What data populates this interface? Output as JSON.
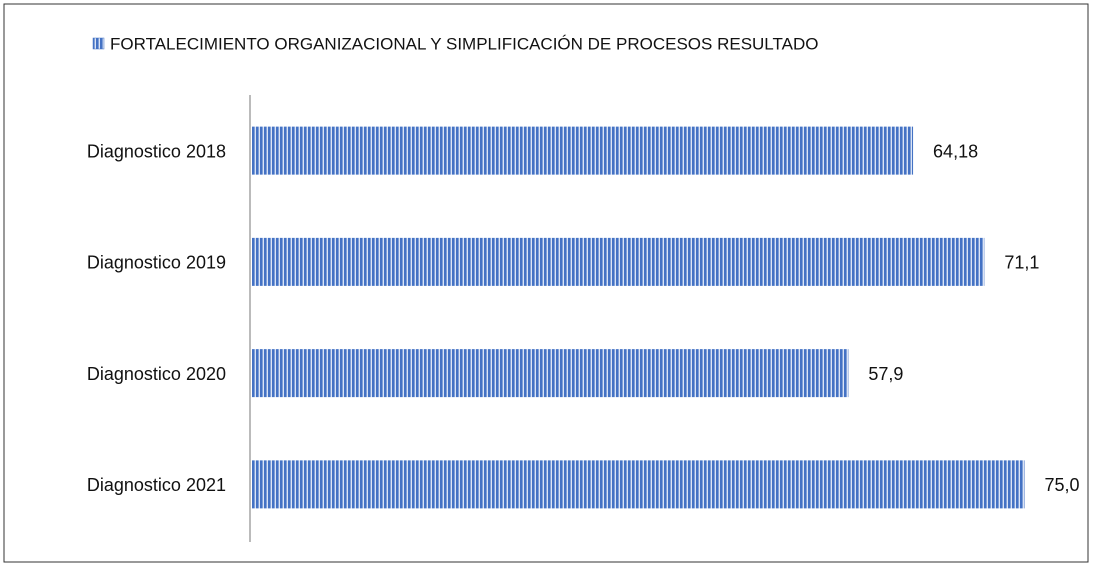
{
  "chart_data": {
    "type": "bar",
    "orientation": "horizontal",
    "categories": [
      "Diagnostico 2018",
      "Diagnostico 2019",
      "Diagnostico 2020",
      "Diagnostico 2021"
    ],
    "series": [
      {
        "name": "FORTALECIMIENTO ORGANIZACIONAL Y SIMPLIFICACIÓN DE PROCESOS RESULTADO",
        "color": "#4472c4",
        "values": [
          64.18,
          71.1,
          57.9,
          75.0
        ],
        "value_labels": [
          "64,18",
          "71,1",
          "57,9",
          "75,0"
        ]
      }
    ]
  }
}
